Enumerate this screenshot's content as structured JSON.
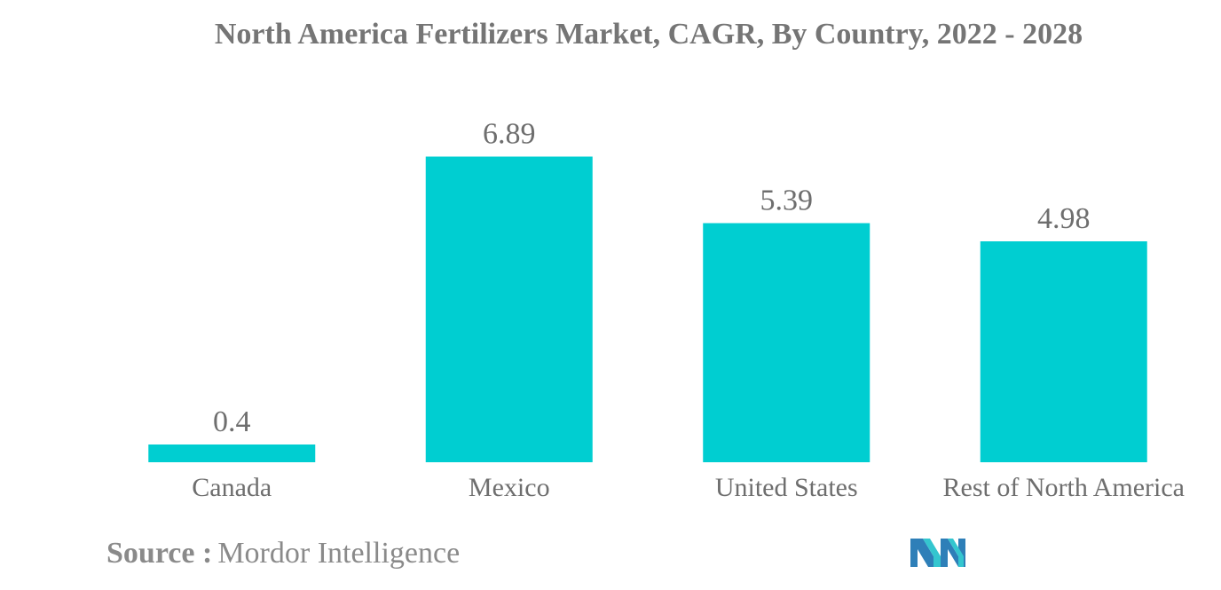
{
  "chart_data": {
    "type": "bar",
    "title": "North America Fertilizers Market, CAGR, By Country, 2022 - 2028",
    "categories": [
      "Canada",
      "Mexico",
      "United States",
      "Rest of North America"
    ],
    "values": [
      0.4,
      6.89,
      5.39,
      4.98
    ],
    "value_labels": [
      "0.4",
      "6.89",
      "5.39",
      "4.98"
    ],
    "xlabel": "",
    "ylabel": "",
    "ylim": [
      0,
      7.5
    ],
    "grid": false,
    "legend": "none",
    "bar_color": "#00CED1"
  },
  "source": {
    "label": "Source :",
    "text": "Mordor Intelligence"
  },
  "logo": {
    "icon": "mordor-intelligence-logo-icon",
    "colors": [
      "#2E7FB8",
      "#34C6CF"
    ]
  },
  "colors": {
    "title": "#757575",
    "labels": "#6e6e6e",
    "source": "#8a8a8a"
  }
}
